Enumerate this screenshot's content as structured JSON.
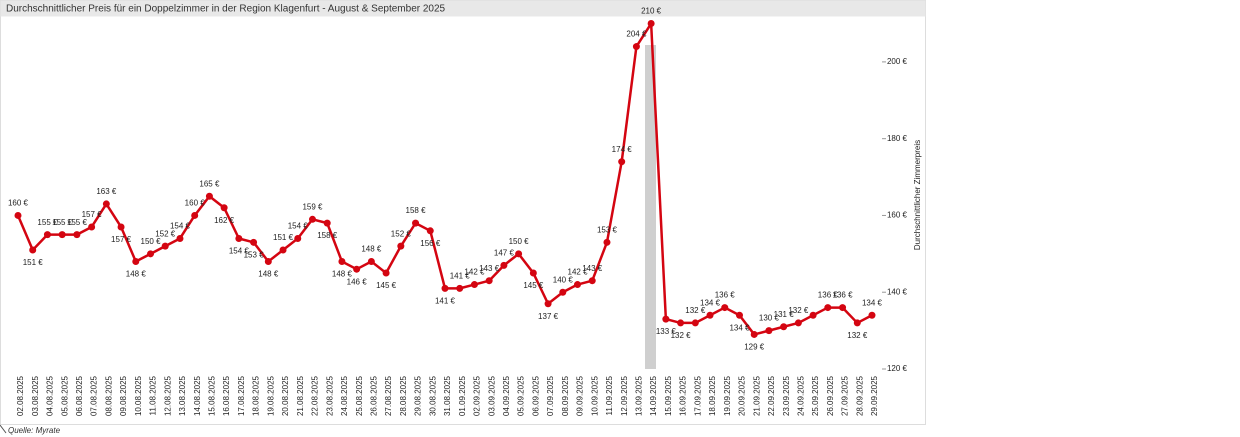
{
  "chart_data": {
    "type": "line",
    "title": "Durchschnittlicher Preis für ein Doppelzimmer in der Region Klagenfurt - August & September 2025",
    "y_axis_label": "Durchschnittlicher Zimmerpreis",
    "source": "Quelle: Myrate",
    "categories": [
      "02.08.2025",
      "03.08.2025",
      "04.08.2025",
      "05.08.2025",
      "06.08.2025",
      "07.08.2025",
      "08.08.2025",
      "09.08.2025",
      "10.08.2025",
      "11.08.2025",
      "12.08.2025",
      "13.08.2025",
      "14.08.2025",
      "15.08.2025",
      "16.08.2025",
      "17.08.2025",
      "18.08.2025",
      "19.08.2025",
      "20.08.2025",
      "21.08.2025",
      "22.08.2025",
      "23.08.2025",
      "24.08.2025",
      "25.08.2025",
      "26.08.2025",
      "27.08.2025",
      "28.08.2025",
      "29.08.2025",
      "30.08.2025",
      "31.08.2025",
      "01.09.2025",
      "02.09.2025",
      "03.09.2025",
      "04.09.2025",
      "05.09.2025",
      "06.09.2025",
      "07.09.2025",
      "08.09.2025",
      "09.09.2025",
      "10.09.2025",
      "11.09.2025",
      "12.09.2025",
      "13.09.2025",
      "14.09.2025",
      "15.09.2025",
      "16.09.2025",
      "17.09.2025",
      "18.09.2025",
      "19.09.2025",
      "20.09.2025",
      "21.09.2025",
      "22.09.2025",
      "23.09.2025",
      "24.09.2025",
      "25.09.2025",
      "26.09.2025",
      "27.09.2025",
      "28.09.2025",
      "29.09.2025"
    ],
    "series": [
      {
        "name": "Durchschnittlicher Zimmerpreis",
        "color": "#d40511",
        "values": [
          160,
          151,
          155,
          155,
          155,
          157,
          163,
          157,
          148,
          150,
          152,
          154,
          160,
          165,
          162,
          154,
          153,
          148,
          151,
          154,
          159,
          158,
          148,
          146,
          148,
          145,
          152,
          158,
          156,
          141,
          141,
          142,
          143,
          147,
          150,
          145,
          137,
          140,
          142,
          143,
          153,
          174,
          204,
          210,
          133,
          132,
          132,
          134,
          136,
          134,
          129,
          130,
          131,
          132,
          134,
          136,
          136,
          132,
          134
        ],
        "value_labels": [
          "160 €",
          "151 €",
          "155 €",
          "155 €",
          "155 €",
          "157 €",
          "163 €",
          "157 €",
          "148 €",
          "150 €",
          "152 €",
          "154 €",
          "160 €",
          "165 €",
          "162 €",
          "154 €",
          "153 €",
          "148 €",
          "151 €",
          "154 €",
          "159 €",
          "158 €",
          "148 €",
          "146 €",
          "148 €",
          "145 €",
          "152 €",
          "158 €",
          "156 €",
          "141 €",
          "141 €",
          "142 €",
          "143 €",
          "147 €",
          "150 €",
          "145 €",
          "137 €",
          "140 €",
          "142 €",
          "143 €",
          "153 €",
          "174 €",
          "204 €",
          "210 €",
          "133 €",
          "132 €",
          "132 €",
          "134 €",
          "136 €",
          "134 €",
          "129 €",
          "130 €",
          "131 €",
          "132 €",
          null,
          "136 €",
          "136 €",
          "132 €",
          "134 €"
        ]
      }
    ],
    "ylim": [
      116,
      213
    ],
    "yticks": [
      {
        "value": 120,
        "label": "120 €"
      },
      {
        "value": 140,
        "label": "140 €"
      },
      {
        "value": 160,
        "label": "160 €"
      },
      {
        "value": 180,
        "label": "180 €"
      },
      {
        "value": 200,
        "label": "200 €"
      }
    ],
    "grid": false
  }
}
